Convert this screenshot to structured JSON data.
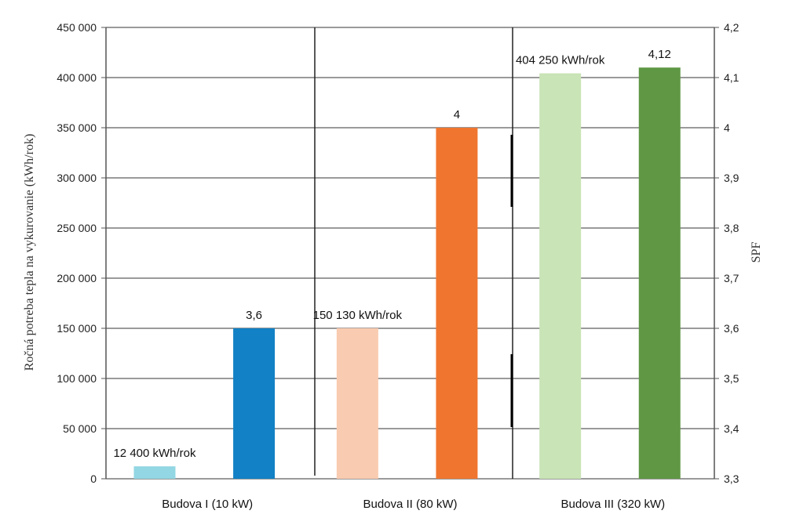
{
  "chart_data": {
    "type": "bar",
    "categories": [
      "Budova I (10 kW)",
      "Budova II (80 kW)",
      "Budova III (320 kW)"
    ],
    "ylabel": "Ročná potreba tepla na vykurovanie (kWh/rok)",
    "y2label": "SPF",
    "ylim": [
      0,
      450000
    ],
    "y2lim": [
      3.3,
      4.2
    ],
    "yticks": [
      "0",
      "50 000",
      "100 000",
      "150 000",
      "200 000",
      "250 000",
      "300 000",
      "350 000",
      "400 000",
      "450 000"
    ],
    "y2ticks": [
      "3,3",
      "3,4",
      "3,5",
      "3,6",
      "3,7",
      "3,8",
      "3,9",
      "4",
      "4,1",
      "4,2"
    ],
    "grid": true,
    "bars": [
      {
        "group": 0,
        "axis": "left",
        "value": 12400,
        "label": "12 400 kWh/rok",
        "color": "#92d7e3"
      },
      {
        "group": 0,
        "axis": "right",
        "value": 3.6,
        "label": "3,6",
        "color": "#1281c5"
      },
      {
        "group": 1,
        "axis": "left",
        "value": 150130,
        "label": "150 130 kWh/rok",
        "color": "#f9cbb0"
      },
      {
        "group": 1,
        "axis": "right",
        "value": 4.0,
        "label": "4",
        "color": "#f07630"
      },
      {
        "group": 2,
        "axis": "left",
        "value": 404250,
        "label": "404 250 kWh/rok",
        "color": "#c9e4b6"
      },
      {
        "group": 2,
        "axis": "right",
        "value": 4.12,
        "label": "4,12",
        "color": "#5f9745"
      }
    ]
  }
}
